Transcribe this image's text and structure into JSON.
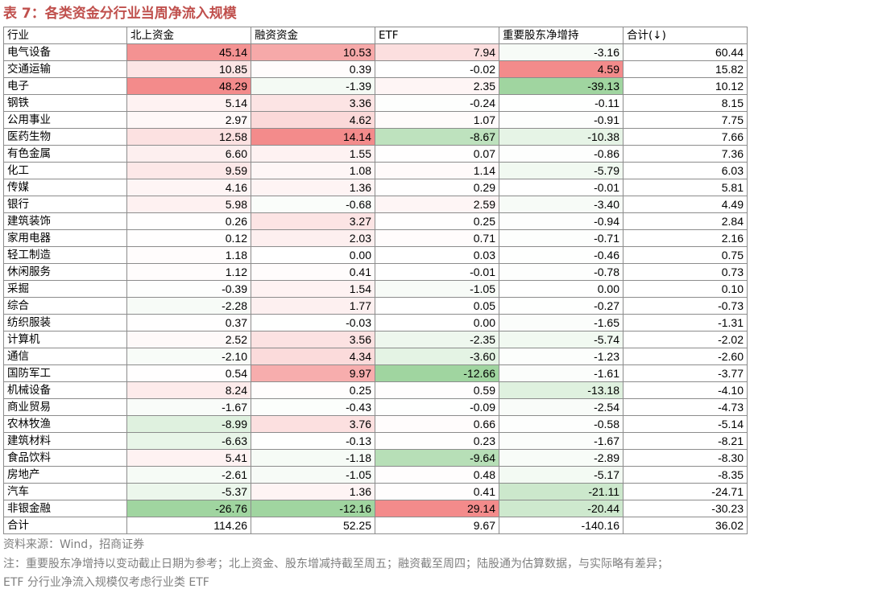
{
  "title": "表 7：各类资金分行业当周净流入规模",
  "table": {
    "header": [
      "行业",
      "北上资金",
      "融资资金",
      "ETF",
      "重要股东净增持",
      "合计(↓)"
    ],
    "rows": [
      [
        "电气设备",
        "45.14",
        "10.53",
        "7.94",
        "-3.16",
        "60.44"
      ],
      [
        "交通运输",
        "10.85",
        "0.39",
        "-0.02",
        "4.59",
        "15.82"
      ],
      [
        "电子",
        "48.29",
        "-1.39",
        "2.35",
        "-39.13",
        "10.12"
      ],
      [
        "钢铁",
        "5.14",
        "3.36",
        "-0.24",
        "-0.11",
        "8.15"
      ],
      [
        "公用事业",
        "2.97",
        "4.62",
        "1.07",
        "-0.91",
        "7.75"
      ],
      [
        "医药生物",
        "12.58",
        "14.14",
        "-8.67",
        "-10.38",
        "7.66"
      ],
      [
        "有色金属",
        "6.60",
        "1.55",
        "0.07",
        "-0.86",
        "7.36"
      ],
      [
        "化工",
        "9.59",
        "1.08",
        "1.14",
        "-5.79",
        "6.03"
      ],
      [
        "传媒",
        "4.16",
        "1.36",
        "0.29",
        "-0.01",
        "5.81"
      ],
      [
        "银行",
        "5.98",
        "-0.68",
        "2.59",
        "-3.40",
        "4.49"
      ],
      [
        "建筑装饰",
        "0.26",
        "3.27",
        "0.25",
        "-0.94",
        "2.84"
      ],
      [
        "家用电器",
        "0.12",
        "2.03",
        "0.71",
        "-0.71",
        "2.16"
      ],
      [
        "轻工制造",
        "1.18",
        "0.00",
        "0.03",
        "-0.46",
        "0.75"
      ],
      [
        "休闲服务",
        "1.12",
        "0.41",
        "-0.01",
        "-0.78",
        "0.73"
      ],
      [
        "采掘",
        "-0.39",
        "1.54",
        "-1.05",
        "0.00",
        "0.10"
      ],
      [
        "综合",
        "-2.28",
        "1.77",
        "0.05",
        "-0.27",
        "-0.73"
      ],
      [
        "纺织服装",
        "0.37",
        "-0.03",
        "0.00",
        "-1.65",
        "-1.31"
      ],
      [
        "计算机",
        "2.52",
        "3.56",
        "-2.35",
        "-5.74",
        "-2.02"
      ],
      [
        "通信",
        "-2.10",
        "4.34",
        "-3.60",
        "-1.23",
        "-2.60"
      ],
      [
        "国防军工",
        "0.54",
        "9.97",
        "-12.66",
        "-1.61",
        "-3.77"
      ],
      [
        "机械设备",
        "8.24",
        "0.25",
        "0.59",
        "-13.18",
        "-4.10"
      ],
      [
        "商业贸易",
        "-1.67",
        "-0.43",
        "-0.09",
        "-2.54",
        "-4.73"
      ],
      [
        "农林牧渔",
        "-8.99",
        "3.76",
        "0.66",
        "-0.58",
        "-5.14"
      ],
      [
        "建筑材料",
        "-6.63",
        "-0.13",
        "0.23",
        "-1.67",
        "-8.21"
      ],
      [
        "食品饮料",
        "5.41",
        "-1.18",
        "-9.64",
        "-2.89",
        "-8.30"
      ],
      [
        "房地产",
        "-2.61",
        "-1.05",
        "0.48",
        "-5.17",
        "-8.35"
      ],
      [
        "汽车",
        "-5.37",
        "1.36",
        "0.41",
        "-21.11",
        "-24.71"
      ],
      [
        "非银金融",
        "-26.76",
        "-12.16",
        "29.14",
        "-20.44",
        "-30.23"
      ]
    ],
    "total": [
      "合计",
      "114.26",
      "52.25",
      "9.67",
      "-140.16",
      "36.02"
    ]
  },
  "notes": [
    "资料来源：Wind，招商证券",
    "注：重要股东净增持以变动截止日期为参考；北上资金、股东增减持截至周五；融资截至周四；陆股通为估算数据，与实际略有差异；",
    "ETF 分行业净流入规模仅考虑行业类 ETF"
  ]
}
